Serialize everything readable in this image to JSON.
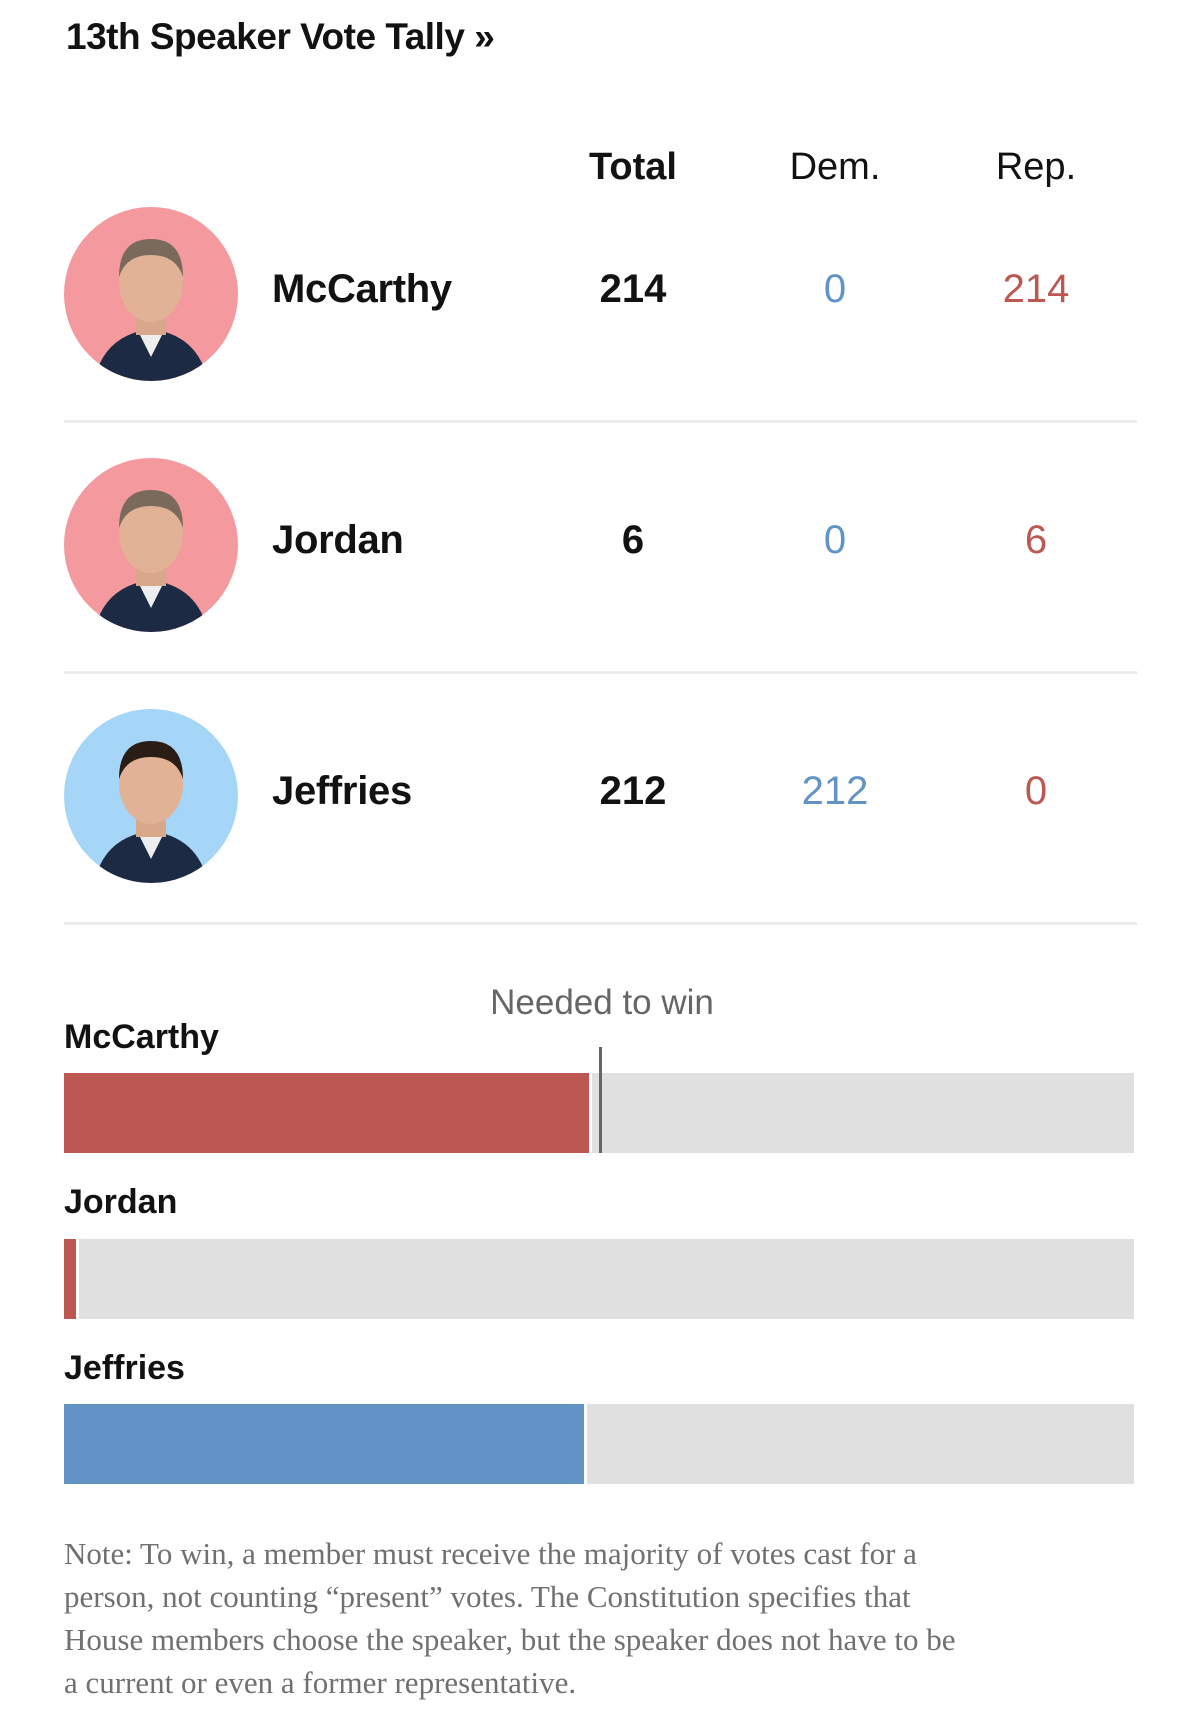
{
  "title": "13th Speaker Vote Tally »",
  "columns": {
    "total": "Total",
    "dem": "Dem.",
    "rep": "Rep."
  },
  "candidates": [
    {
      "name": "McCarthy",
      "total": "214",
      "dem": "0",
      "rep": "214",
      "party_color": "#f4999d",
      "icon": "portrait-mccarthy"
    },
    {
      "name": "Jordan",
      "total": "6",
      "dem": "0",
      "rep": "6",
      "party_color": "#f4999d",
      "icon": "portrait-jordan"
    },
    {
      "name": "Jeffries",
      "total": "212",
      "dem": "212",
      "rep": "0",
      "party_color": "#a6d6f7",
      "icon": "portrait-jeffries"
    }
  ],
  "colors": {
    "dem": "#6193c6",
    "rep": "#bd5752",
    "track": "#e0e0e0"
  },
  "chart_data": {
    "type": "bar",
    "orientation": "horizontal",
    "categories": [
      "McCarthy",
      "Jordan",
      "Jeffries"
    ],
    "values": [
      214,
      6,
      212
    ],
    "colors": [
      "#bd5752",
      "#bd5752",
      "#6193c6"
    ],
    "xlim": [
      0,
      434
    ],
    "threshold": {
      "value": 218,
      "label": "Needed to win"
    }
  },
  "note": [
    "Note: To win, a member must receive the majority of votes cast for a",
    "person, not counting “present” votes. The Constitution specifies that",
    "House members choose the speaker, but the speaker does not have to be",
    "a current or even a former representative."
  ]
}
